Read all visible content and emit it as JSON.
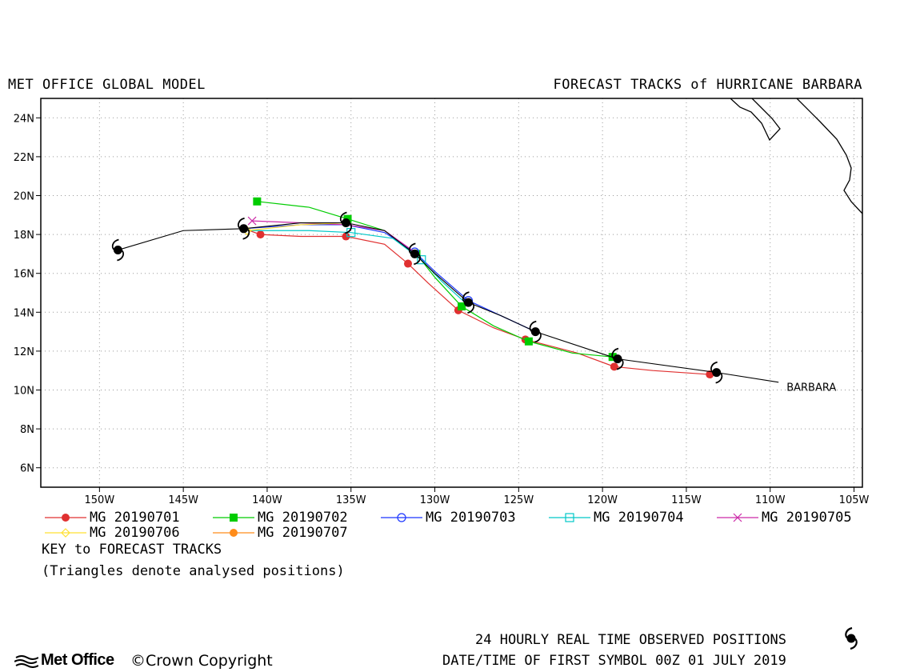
{
  "header": {
    "left_title": "MET OFFICE GLOBAL MODEL",
    "right_title": "FORECAST TRACKS of HURRICANE BARBARA"
  },
  "chart_data": {
    "type": "scatter",
    "title": "FORECAST TRACKS of HURRICANE BARBARA",
    "xlabel": "",
    "ylabel": "",
    "xlim": [
      -153.5,
      -104.5
    ],
    "ylim": [
      5,
      25
    ],
    "x_ticks": [
      "150W",
      "145W",
      "140W",
      "135W",
      "130W",
      "125W",
      "120W",
      "115W",
      "110W",
      "105W"
    ],
    "x_tick_values": [
      -150,
      -145,
      -140,
      -135,
      -130,
      -125,
      -120,
      -115,
      -110,
      -105
    ],
    "y_ticks": [
      "6N",
      "8N",
      "10N",
      "12N",
      "14N",
      "16N",
      "18N",
      "20N",
      "22N",
      "24N"
    ],
    "y_tick_values": [
      6,
      8,
      10,
      12,
      14,
      16,
      18,
      20,
      22,
      24
    ],
    "grid": true,
    "storm_label": "BARBARA",
    "storm_label_pos": [
      -109.5,
      10.2
    ],
    "observed": {
      "name": "24 HOURLY REAL TIME OBSERVED POSITIONS",
      "color": "#000000",
      "track": [
        [
          -109.5,
          10.4
        ],
        [
          -113.2,
          10.9
        ],
        [
          -119.1,
          11.6
        ],
        [
          -124.0,
          13.0
        ],
        [
          -126.0,
          13.8
        ],
        [
          -128.0,
          14.5
        ],
        [
          -130.0,
          16.0
        ],
        [
          -131.2,
          17.0
        ],
        [
          -133.0,
          18.2
        ],
        [
          -135.3,
          18.6
        ],
        [
          -138.0,
          18.6
        ],
        [
          -141.4,
          18.3
        ],
        [
          -145.0,
          18.2
        ],
        [
          -148.9,
          17.2
        ]
      ],
      "symbols": [
        [
          -113.2,
          10.9
        ],
        [
          -119.1,
          11.6
        ],
        [
          -124.0,
          13.0
        ],
        [
          -128.0,
          14.5
        ],
        [
          -131.2,
          17.0
        ],
        [
          -135.3,
          18.6
        ],
        [
          -141.4,
          18.3
        ],
        [
          -148.9,
          17.2
        ]
      ]
    },
    "series": [
      {
        "name": "MG 20190701",
        "color": "#e03030",
        "marker": "filled-circle",
        "points": [
          [
            -113.6,
            10.8
          ],
          [
            -119.3,
            11.2
          ],
          [
            -124.6,
            12.6
          ],
          [
            -128.6,
            14.1
          ],
          [
            -131.6,
            16.5
          ],
          [
            -135.3,
            17.9
          ],
          [
            -140.4,
            18.0
          ]
        ],
        "path": [
          [
            -113.6,
            10.8
          ],
          [
            -117.0,
            11.0
          ],
          [
            -119.3,
            11.2
          ],
          [
            -121.5,
            11.9
          ],
          [
            -124.6,
            12.6
          ],
          [
            -126.5,
            13.2
          ],
          [
            -128.6,
            14.1
          ],
          [
            -130.4,
            15.5
          ],
          [
            -131.6,
            16.5
          ],
          [
            -133.0,
            17.5
          ],
          [
            -135.3,
            17.9
          ],
          [
            -138.0,
            17.9
          ],
          [
            -140.4,
            18.0
          ],
          [
            -141.4,
            18.3
          ]
        ]
      },
      {
        "name": "MG 20190702",
        "color": "#00cc00",
        "marker": "filled-square",
        "points": [
          [
            -119.4,
            11.7
          ],
          [
            -124.4,
            12.5
          ],
          [
            -128.4,
            14.3
          ],
          [
            -131.1,
            17.0
          ],
          [
            -135.2,
            18.8
          ],
          [
            -140.6,
            19.7
          ]
        ],
        "path": [
          [
            -119.4,
            11.7
          ],
          [
            -121.8,
            11.9
          ],
          [
            -124.4,
            12.5
          ],
          [
            -126.5,
            13.3
          ],
          [
            -128.4,
            14.3
          ],
          [
            -130.0,
            15.8
          ],
          [
            -131.1,
            17.0
          ],
          [
            -133.0,
            18.2
          ],
          [
            -135.2,
            18.8
          ],
          [
            -137.5,
            19.4
          ],
          [
            -140.6,
            19.7
          ]
        ]
      },
      {
        "name": "MG 20190703",
        "color": "#1a35ff",
        "marker": "open-circle",
        "points": [
          [
            -128.0,
            14.6
          ],
          [
            -131.2,
            17.1
          ]
        ],
        "path": [
          [
            -124.0,
            13.0
          ],
          [
            -126.0,
            13.8
          ],
          [
            -128.0,
            14.6
          ],
          [
            -130.0,
            16.1
          ],
          [
            -131.2,
            17.1
          ],
          [
            -133.0,
            18.1
          ],
          [
            -135.3,
            18.5
          ],
          [
            -138.0,
            18.5
          ],
          [
            -141.4,
            18.3
          ]
        ]
      },
      {
        "name": "MG 20190704",
        "color": "#00c8c8",
        "marker": "open-square",
        "points": [
          [
            -130.8,
            16.7
          ],
          [
            -135.0,
            18.1
          ]
        ],
        "path": [
          [
            -128.2,
            14.5
          ],
          [
            -129.6,
            15.6
          ],
          [
            -130.8,
            16.7
          ],
          [
            -132.5,
            17.8
          ],
          [
            -135.0,
            18.1
          ],
          [
            -137.5,
            18.2
          ],
          [
            -140.9,
            18.2
          ],
          [
            -141.4,
            18.3
          ]
        ]
      },
      {
        "name": "MG 20190705",
        "color": "#cc2aa8",
        "marker": "cross",
        "points": [
          [
            -140.9,
            18.7
          ]
        ],
        "path": [
          [
            -131.2,
            17.1
          ],
          [
            -133.0,
            18.2
          ],
          [
            -135.3,
            18.5
          ],
          [
            -138.0,
            18.6
          ],
          [
            -140.9,
            18.7
          ]
        ]
      },
      {
        "name": "MG 20190706",
        "color": "#ffe033",
        "marker": "open-diamond",
        "points": [
          [
            -141.2,
            18.2
          ]
        ],
        "path": [
          [
            -135.3,
            18.6
          ],
          [
            -138.0,
            18.5
          ],
          [
            -141.2,
            18.2
          ]
        ]
      },
      {
        "name": "MG 20190707",
        "color": "#ff8c1a",
        "marker": "filled-circle",
        "points": [
          [
            -141.4,
            18.3
          ]
        ],
        "path": [
          [
            -141.4,
            18.3
          ]
        ]
      }
    ]
  },
  "legend": [
    {
      "label": "MG 20190701",
      "color": "#e03030",
      "marker": "filled-circle"
    },
    {
      "label": "MG 20190702",
      "color": "#00cc00",
      "marker": "filled-square"
    },
    {
      "label": "MG 20190703",
      "color": "#1a35ff",
      "marker": "open-circle"
    },
    {
      "label": "MG 20190704",
      "color": "#00c8c8",
      "marker": "open-square"
    },
    {
      "label": "MG 20190705",
      "color": "#cc2aa8",
      "marker": "cross"
    },
    {
      "label": "MG 20190706",
      "color": "#ffe033",
      "marker": "open-diamond"
    },
    {
      "label": "MG 20190707",
      "color": "#ff8c1a",
      "marker": "filled-circle"
    }
  ],
  "key": {
    "title": "KEY to FORECAST TRACKS",
    "note": "(Triangles denote analysed positions)"
  },
  "footer": {
    "observed_note": "24 HOURLY REAL TIME OBSERVED POSITIONS",
    "date_note": "DATE/TIME OF FIRST SYMBOL 00Z 01 JULY 2019",
    "logo": "Met Office",
    "copyright": "©Crown Copyright",
    "observed_symbol_icon": "hurricane-icon",
    "logo_icon": "met-office-logo-icon"
  }
}
